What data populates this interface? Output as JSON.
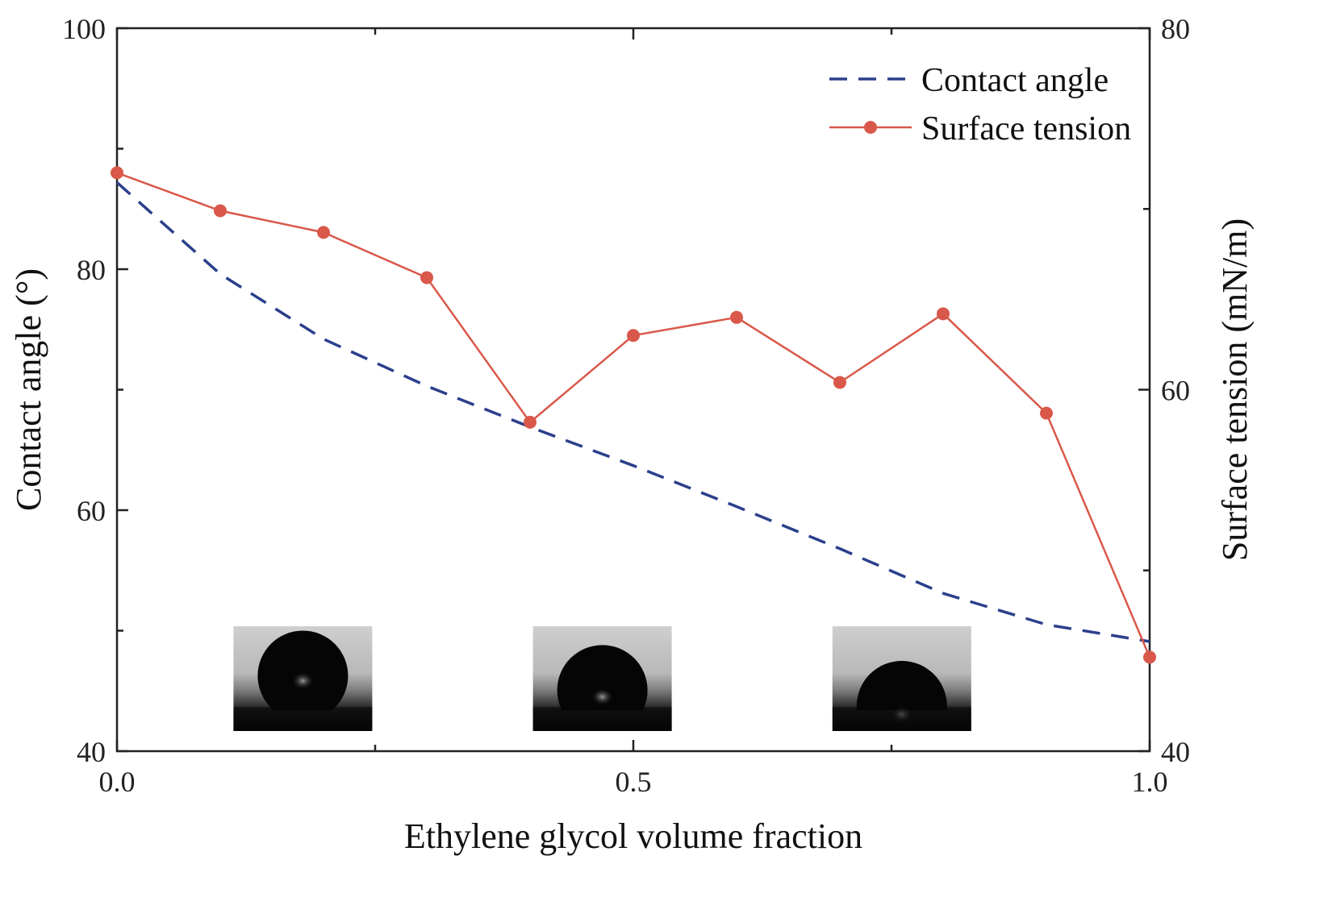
{
  "chart_data": {
    "type": "line",
    "xlabel": "Ethylene glycol volume fraction",
    "ylabel_left": "Contact angle (°)",
    "ylabel_right": "Surface tension (mN/m)",
    "xlim": [
      0,
      1
    ],
    "ylim_left": [
      40,
      100
    ],
    "ylim_right": [
      40,
      80
    ],
    "x_ticks": [
      "0.0",
      "0.5",
      "1.0"
    ],
    "y_left_ticks": [
      "40",
      "60",
      "80",
      "100"
    ],
    "y_right_ticks": [
      "40",
      "60",
      "80"
    ],
    "legend_position": "top-right",
    "series": [
      {
        "name": "Contact angle",
        "axis": "left",
        "style": "dashed",
        "color": "#2b3f8c",
        "x": [
          0.0,
          0.1,
          0.2,
          0.3,
          0.4,
          0.5,
          0.6,
          0.7,
          0.8,
          0.9,
          1.0
        ],
        "y": [
          87.2,
          79.6,
          74.2,
          70.3,
          66.9,
          63.7,
          60.3,
          56.8,
          53.1,
          50.5,
          49.1
        ]
      },
      {
        "name": "Surface tension",
        "axis": "right",
        "style": "solid-marker",
        "color": "#d9584a",
        "x": [
          0.0,
          0.1,
          0.2,
          0.3,
          0.4,
          0.5,
          0.6,
          0.7,
          0.8,
          0.9,
          1.0
        ],
        "y": [
          72.0,
          69.9,
          68.7,
          66.2,
          58.2,
          63.0,
          64.0,
          60.4,
          64.2,
          58.7,
          45.2
        ]
      }
    ],
    "insets": [
      {
        "name": "droplet-photo-high-angle",
        "x_center": 0.18,
        "cap": 0.62
      },
      {
        "name": "droplet-photo-mid-angle",
        "x_center": 0.47,
        "cap": 0.3
      },
      {
        "name": "droplet-photo-low-angle",
        "x_center": 0.76,
        "cap": -0.05
      }
    ]
  }
}
